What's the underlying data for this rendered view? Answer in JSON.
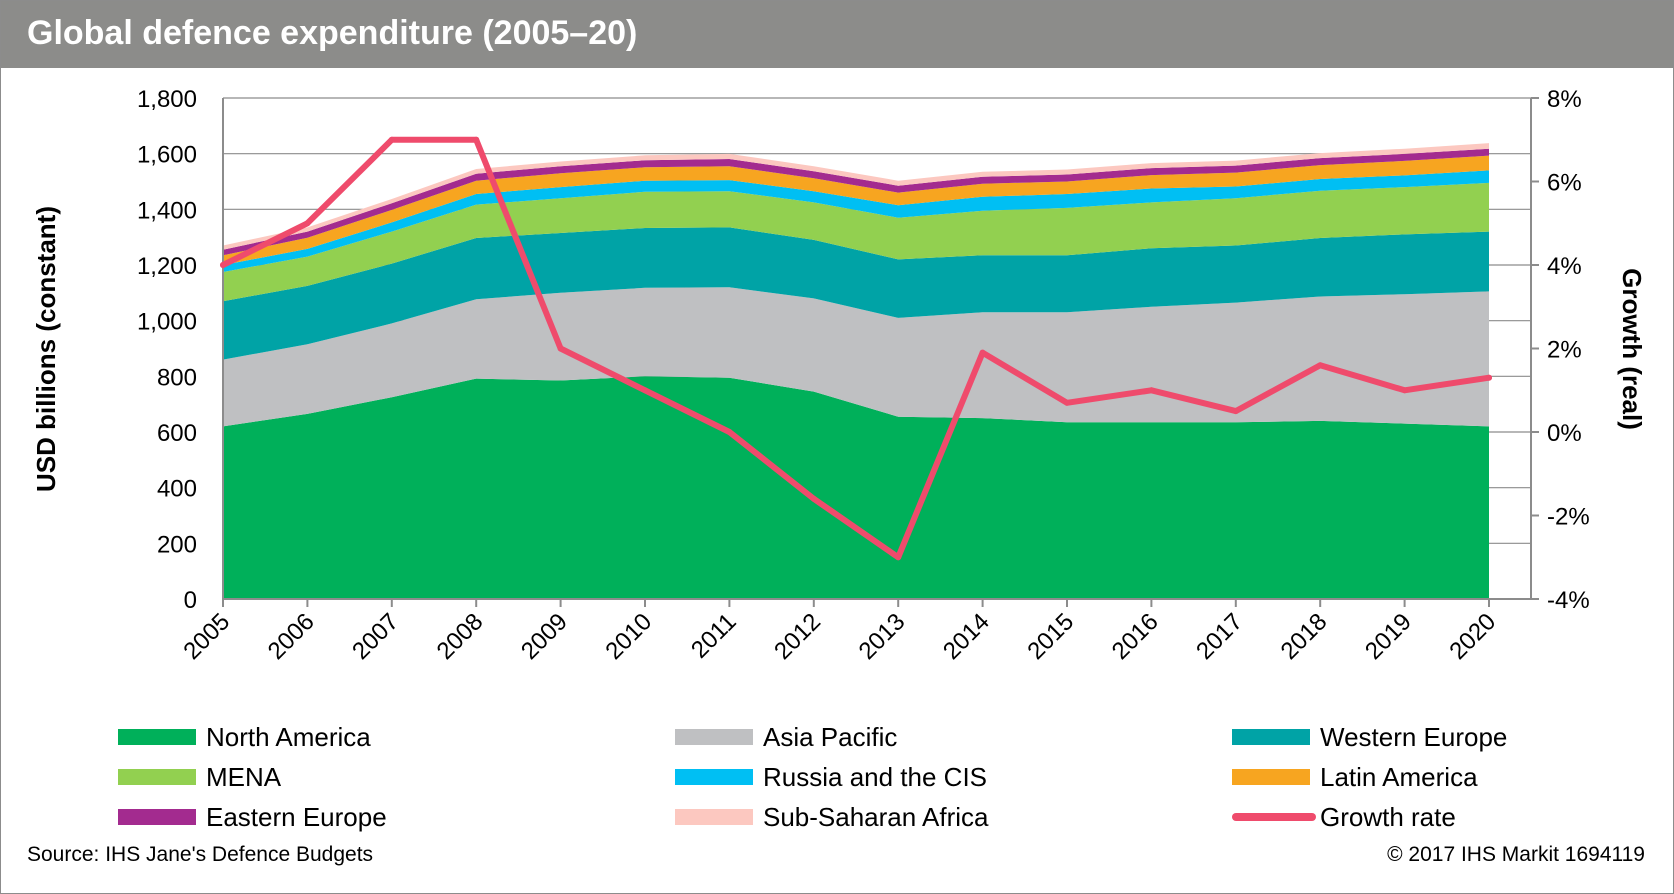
{
  "header": {
    "title": "Global defence expenditure (2005–20)"
  },
  "chart_data": {
    "type": "area",
    "title": "Global defence expenditure (2005–20)",
    "xlabel": "",
    "ylabel": "USD billions (constant)",
    "y2label": "Growth (real)",
    "ylim": [
      0,
      1800
    ],
    "y2lim": [
      -4,
      8
    ],
    "yticks": [
      "0",
      "200",
      "400",
      "600",
      "800",
      "1,000",
      "1,200",
      "1,400",
      "1,600",
      "1,800"
    ],
    "y2ticks": [
      "-4%",
      "-2%",
      "0%",
      "2%",
      "4%",
      "6%",
      "8%"
    ],
    "grid": "horizontal",
    "legend_position": "bottom",
    "categories": [
      "2005",
      "2006",
      "2007",
      "2008",
      "2009",
      "2010",
      "2011",
      "2012",
      "2013",
      "2014",
      "2015",
      "2016",
      "2017",
      "2018",
      "2019",
      "2020"
    ],
    "stacked": true,
    "series": [
      {
        "name": "North America",
        "color": "#00b05a",
        "values": [
          620,
          665,
          725,
          792,
          785,
          800,
          795,
          745,
          655,
          650,
          635,
          635,
          635,
          640,
          630,
          620
        ]
      },
      {
        "name": "Asia Pacific",
        "color": "#bfc0c2",
        "values": [
          240,
          250,
          265,
          285,
          315,
          318,
          325,
          335,
          355,
          380,
          395,
          415,
          430,
          447,
          465,
          485
        ]
      },
      {
        "name": "Western Europe",
        "color": "#00a3a6",
        "values": [
          210,
          210,
          215,
          220,
          215,
          215,
          215,
          210,
          210,
          205,
          205,
          210,
          205,
          210,
          215,
          215
        ]
      },
      {
        "name": "MENA",
        "color": "#92d050",
        "values": [
          105,
          105,
          115,
          120,
          125,
          130,
          130,
          135,
          150,
          160,
          170,
          165,
          170,
          170,
          170,
          175
        ]
      },
      {
        "name": "Russia and the CIS",
        "color": "#00bff3",
        "values": [
          25,
          28,
          33,
          38,
          40,
          40,
          40,
          40,
          45,
          50,
          50,
          50,
          42,
          42,
          42,
          45
        ]
      },
      {
        "name": "Latin America",
        "color": "#f7a520",
        "values": [
          35,
          40,
          45,
          48,
          50,
          48,
          50,
          47,
          45,
          47,
          45,
          48,
          50,
          50,
          52,
          53
        ]
      },
      {
        "name": "Eastern Europe",
        "color": "#a32b8f",
        "values": [
          20,
          22,
          24,
          25,
          25,
          25,
          26,
          25,
          25,
          25,
          25,
          25,
          25,
          25,
          25,
          25
        ]
      },
      {
        "name": "Sub-Saharan Africa",
        "color": "#fcc8c0",
        "values": [
          15,
          15,
          15,
          17,
          17,
          18,
          18,
          18,
          18,
          18,
          18,
          18,
          18,
          18,
          19,
          20
        ]
      }
    ],
    "line_series": {
      "name": "Growth rate",
      "color": "#ef4b6c",
      "axis": "right",
      "values": [
        4.0,
        5.0,
        7.0,
        7.0,
        2.0,
        1.0,
        0.0,
        -1.6,
        -3.0,
        1.9,
        0.7,
        1.0,
        0.5,
        1.6,
        1.0,
        1.3
      ]
    }
  },
  "legend": [
    {
      "label": "North America",
      "color": "#00b05a",
      "kind": "area"
    },
    {
      "label": "Asia Pacific",
      "color": "#bfc0c2",
      "kind": "area"
    },
    {
      "label": "Western Europe",
      "color": "#00a3a6",
      "kind": "area"
    },
    {
      "label": "MENA",
      "color": "#92d050",
      "kind": "area"
    },
    {
      "label": "Russia and the CIS",
      "color": "#00bff3",
      "kind": "area"
    },
    {
      "label": "Latin America",
      "color": "#f7a520",
      "kind": "area"
    },
    {
      "label": "Eastern Europe",
      "color": "#a32b8f",
      "kind": "area"
    },
    {
      "label": "Sub-Saharan Africa",
      "color": "#fcc8c0",
      "kind": "area"
    },
    {
      "label": "Growth rate",
      "color": "#ef4b6c",
      "kind": "line"
    }
  ],
  "footer": {
    "source": "Source: IHS Jane's Defence Budgets",
    "copyright": "© 2017 IHS Markit    1694119"
  }
}
